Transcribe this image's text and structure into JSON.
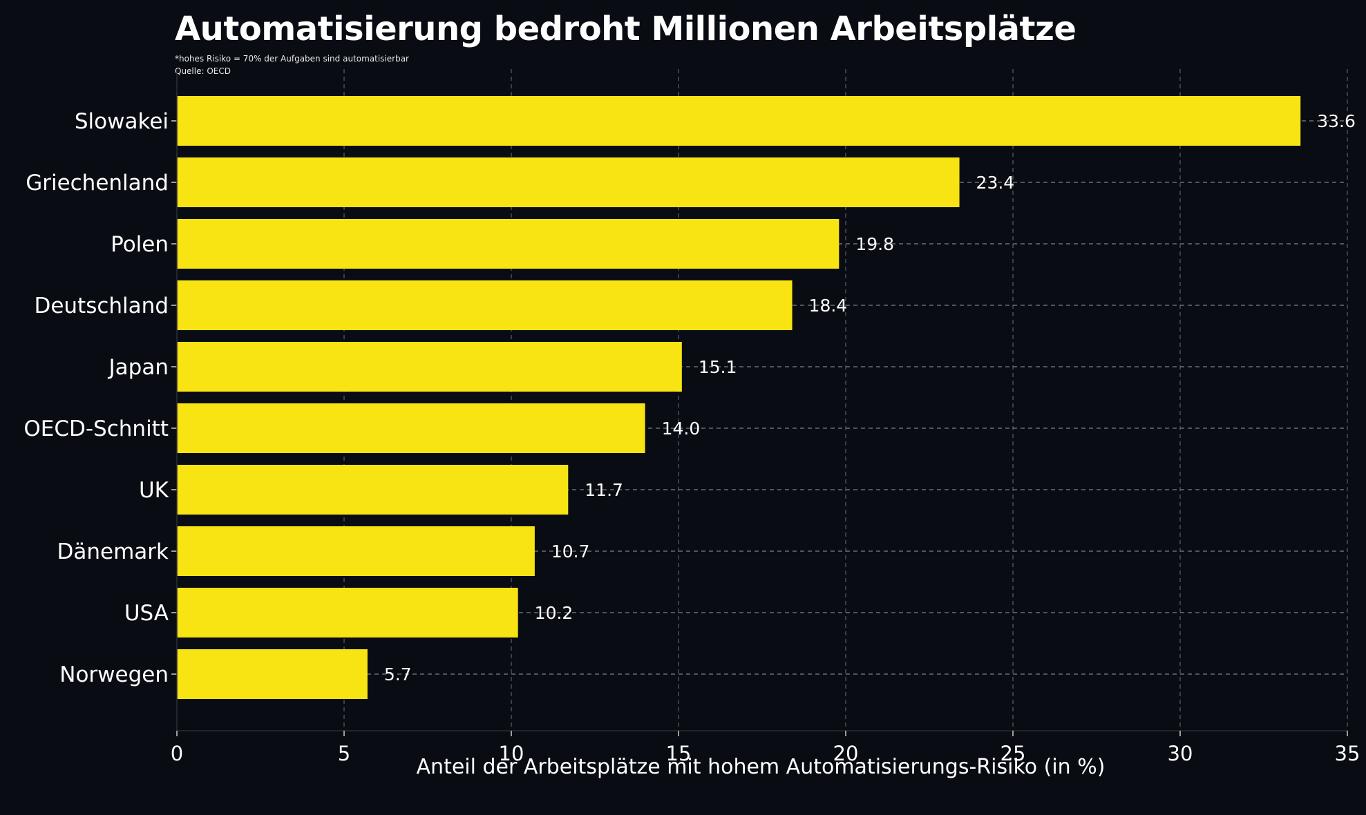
{
  "chart_data": {
    "type": "bar",
    "orientation": "horizontal",
    "title": "Automatisierung bedroht Millionen Arbeitsplätze",
    "subtitle": "*hohes Risiko = 70% der Aufgaben sind automatisierbar",
    "source": "Quelle: OECD",
    "categories": [
      "Slowakei",
      "Griechenland",
      "Polen",
      "Deutschland",
      "Japan",
      "OECD-Schnitt",
      "UK",
      "Dänemark",
      "USA",
      "Norwegen"
    ],
    "values": [
      33.6,
      23.4,
      19.8,
      18.4,
      15.1,
      14.0,
      11.7,
      10.7,
      10.2,
      5.7
    ],
    "value_labels": [
      "33.6",
      "23.4",
      "19.8",
      "18.4",
      "15.1",
      "14.0",
      "11.7",
      "10.7",
      "10.2",
      "5.7"
    ],
    "xlabel": "Anteil der Arbeitsplätze mit hohem Automatisierungs-Risiko (in %)",
    "ylabel": "",
    "xlim": [
      0,
      35
    ],
    "xticks": [
      0,
      5,
      10,
      15,
      20,
      25,
      30,
      35
    ],
    "grid": true,
    "bar_color": "#f8e412",
    "background_color": "#090c13"
  }
}
